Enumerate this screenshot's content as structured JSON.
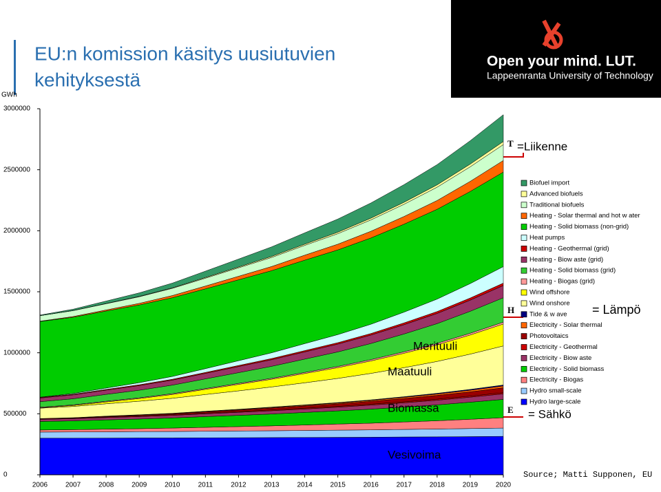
{
  "header": {
    "title_lines": [
      "EU:n komission käsitys uusiutuvien",
      "kehityksestä"
    ],
    "logo_slogan": "Open your mind. LUT.",
    "logo_university": "Lappeenranta University of Technology"
  },
  "source": "Source; Matti Supponen, EU",
  "chart_data": {
    "type": "stacked-area",
    "y_label": "GWh",
    "x": [
      2006,
      2007,
      2008,
      2009,
      2010,
      2011,
      2012,
      2013,
      2014,
      2015,
      2016,
      2017,
      2018,
      2019,
      2020
    ],
    "xlim": [
      2006,
      2020
    ],
    "xticks": [
      2006,
      2007,
      2008,
      2009,
      2010,
      2011,
      2012,
      2013,
      2014,
      2015,
      2016,
      2017,
      2018,
      2019,
      2020
    ],
    "ylim": [
      0,
      3000000
    ],
    "yticks": [
      0,
      500000,
      1000000,
      1500000,
      2000000,
      2500000,
      3000000
    ],
    "grid": false,
    "annotations": [
      "T",
      "=Liikenne",
      "H",
      "= Lämpö",
      "E",
      "= Sähkö",
      "Merituuli",
      "Maatuuli",
      "Biomassa",
      "Vesivoima"
    ],
    "series": [
      {
        "name": "Hydro large-scale",
        "color": "#0000ff",
        "values": [
          300000,
          300000,
          301000,
          302000,
          302000,
          303000,
          304000,
          305000,
          306000,
          307000,
          308000,
          310000,
          311000,
          313000,
          315000
        ]
      },
      {
        "name": "Hydro small-scale",
        "color": "#99ccff",
        "values": [
          50000,
          51000,
          51000,
          52000,
          53000,
          54000,
          55000,
          56000,
          57000,
          59000,
          60000,
          62000,
          64000,
          66000,
          68000
        ]
      },
      {
        "name": "Electricity - Biogas",
        "color": "#ff8080",
        "values": [
          17000,
          19000,
          22000,
          24000,
          28000,
          32000,
          36000,
          40000,
          45000,
          50000,
          55000,
          61000,
          68000,
          76000,
          85000
        ]
      },
      {
        "name": "Electricity - Solid biomass",
        "color": "#00cc00",
        "values": [
          70000,
          72000,
          76000,
          79000,
          83000,
          88000,
          92000,
          97000,
          103000,
          108000,
          115000,
          122000,
          130000,
          140000,
          150000
        ]
      },
      {
        "name": "Electricity - Biow aste",
        "color": "#993366",
        "values": [
          17000,
          18000,
          19000,
          20000,
          21000,
          23000,
          25000,
          27000,
          28000,
          30000,
          33000,
          35000,
          38000,
          41000,
          45000
        ]
      },
      {
        "name": "Electricity - Geothermal",
        "color": "#cc0000",
        "values": [
          5000,
          5000,
          5000,
          6000,
          6000,
          6000,
          6000,
          7000,
          7000,
          7000,
          8000,
          8000,
          9000,
          9000,
          10000
        ]
      },
      {
        "name": "Photovoltaics",
        "color": "#990000",
        "values": [
          2000,
          3000,
          5000,
          6000,
          8000,
          10000,
          13000,
          15000,
          18000,
          20000,
          23000,
          27000,
          31000,
          35000,
          40000
        ]
      },
      {
        "name": "Electricity - Solar thermal",
        "color": "#ff6600",
        "values": [
          0,
          0,
          1000,
          2000,
          2000,
          3000,
          4000,
          5000,
          6000,
          7000,
          8000,
          10000,
          11000,
          13000,
          15000
        ]
      },
      {
        "name": "Tide & w ave",
        "color": "#000080",
        "values": [
          0,
          0,
          1000,
          1000,
          1000,
          2000,
          2000,
          3000,
          3000,
          4000,
          4000,
          5000,
          6000,
          7000,
          8000
        ]
      },
      {
        "name": "Wind onshore",
        "color": "#ffff99",
        "values": [
          85000,
          92000,
          101000,
          111000,
          123000,
          137000,
          151000,
          165000,
          181000,
          198000,
          217000,
          238000,
          261000,
          289000,
          320000
        ]
      },
      {
        "name": "Wind offshore",
        "color": "#ffff00",
        "values": [
          3000,
          8000,
          15000,
          22000,
          31000,
          42000,
          53000,
          63000,
          76000,
          88000,
          102000,
          118000,
          136000,
          157000,
          180000
        ]
      },
      {
        "name": "Heating - Biogas (grid)",
        "color": "#ff9999",
        "values": [
          5000,
          5000,
          6000,
          6000,
          7000,
          7000,
          8000,
          8000,
          9000,
          10000,
          11000,
          12000,
          13000,
          14000,
          15000
        ]
      },
      {
        "name": "Heating - Solid biomass (grid)",
        "color": "#33cc33",
        "values": [
          45000,
          50000,
          56000,
          62000,
          70000,
          79000,
          88000,
          98000,
          109000,
          119000,
          132000,
          146000,
          161000,
          180000,
          200000
        ]
      },
      {
        "name": "Heating - Biow aste (grid)",
        "color": "#993366",
        "values": [
          30000,
          32000,
          35000,
          38000,
          41000,
          45000,
          50000,
          54000,
          59000,
          64000,
          69000,
          76000,
          83000,
          91000,
          100000
        ]
      },
      {
        "name": "Heating - Geothermal (grid)",
        "color": "#cc0000",
        "values": [
          5000,
          5000,
          6000,
          7000,
          7000,
          8000,
          9000,
          10000,
          11000,
          12000,
          13000,
          15000,
          16000,
          18000,
          20000
        ]
      },
      {
        "name": "Heat pumps",
        "color": "#ccffff",
        "values": [
          2000,
          6000,
          11000,
          17000,
          23000,
          31000,
          39000,
          47000,
          57000,
          66000,
          76000,
          88000,
          102000,
          118000,
          135000
        ]
      },
      {
        "name": "Heating - Solid biomass (non-grid)",
        "color": "#00cc00",
        "values": [
          620000,
          625000,
          631000,
          637000,
          645000,
          654000,
          663000,
          673000,
          684000,
          694000,
          707000,
          721000,
          736000,
          755000,
          775000
        ]
      },
      {
        "name": "Heating - Solar thermal and hot w ater",
        "color": "#ff6600",
        "values": [
          3000,
          6000,
          9000,
          13000,
          18000,
          23000,
          29000,
          34000,
          41000,
          47000,
          55000,
          63000,
          72000,
          83000,
          95000
        ]
      },
      {
        "name": "Traditional biofuels",
        "color": "#ccffcc",
        "values": [
          45000,
          48000,
          51000,
          54000,
          59000,
          64000,
          69000,
          74000,
          80000,
          86000,
          93000,
          100000,
          109000,
          119000,
          130000
        ]
      },
      {
        "name": "Advanced biofuels",
        "color": "#ffff99",
        "values": [
          0,
          1000,
          2000,
          3000,
          4000,
          6000,
          7000,
          9000,
          10000,
          12000,
          14000,
          16000,
          19000,
          22000,
          25000
        ]
      },
      {
        "name": "Biofuel import",
        "color": "#339966",
        "values": [
          5000,
          11000,
          20000,
          29000,
          39000,
          52000,
          65000,
          78000,
          93000,
          108000,
          125000,
          145000,
          166000,
          192000,
          220000
        ]
      }
    ]
  }
}
